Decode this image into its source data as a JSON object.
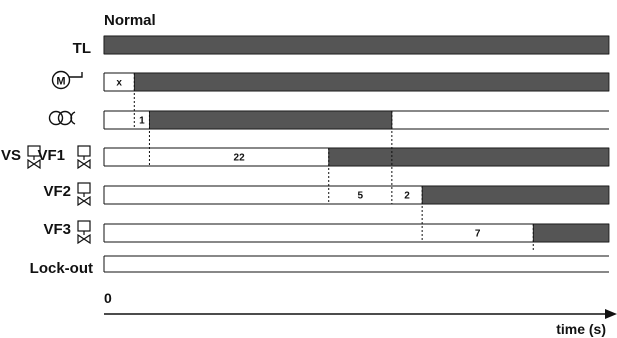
{
  "title": "Normal",
  "rows": [
    {
      "id": "tl",
      "label": "TL",
      "icon": "",
      "on_from": 0,
      "on_to": 100
    },
    {
      "id": "motor",
      "label": "",
      "icon": "motor-icon",
      "on_from": 6,
      "on_to": 100
    },
    {
      "id": "transformer",
      "label": "",
      "icon": "ignition-transformer-icon",
      "on_from": 9,
      "on_to": 57
    },
    {
      "id": "vf1",
      "label": "VF1",
      "label2": "VS",
      "icon": "valve-icon",
      "on_from": 44.5,
      "on_to": 100
    },
    {
      "id": "vf2",
      "label": "VF2",
      "icon": "valve-icon",
      "on_from": 63,
      "on_to": 100
    },
    {
      "id": "vf3",
      "label": "VF3",
      "icon": "valve-icon",
      "on_from": 85,
      "on_to": 100
    },
    {
      "id": "lockout",
      "label": "Lock-out",
      "icon": "",
      "on_from": null,
      "on_to": null
    }
  ],
  "intervals": [
    {
      "row": 1,
      "from": 0,
      "to": 6,
      "label": "x"
    },
    {
      "row": 2,
      "from": 6,
      "to": 9,
      "label": "1"
    },
    {
      "row": 3,
      "from": 9,
      "to": 44.5,
      "label": "22"
    },
    {
      "row": 4,
      "from": 44.5,
      "to": 57,
      "label": "5"
    },
    {
      "row": 4,
      "from": 57,
      "to": 63,
      "label": "2"
    },
    {
      "row": 5,
      "from": 63,
      "to": 85,
      "label": "7"
    }
  ],
  "markers": [
    {
      "t": 6,
      "from_row": 1,
      "to_row": 2
    },
    {
      "t": 9,
      "from_row": 2,
      "to_row": 3
    },
    {
      "t": 44.5,
      "from_row": 3,
      "to_row": 4
    },
    {
      "t": 57,
      "from_row": 2,
      "to_row": 4
    },
    {
      "t": 63,
      "from_row": 4,
      "to_row": 5
    },
    {
      "t": 85,
      "from_row": 5,
      "to_row": 5
    }
  ],
  "axis": {
    "origin_label": "0",
    "label": "time (s)"
  },
  "colors": {
    "bar": "#555555",
    "line": "#111111"
  }
}
